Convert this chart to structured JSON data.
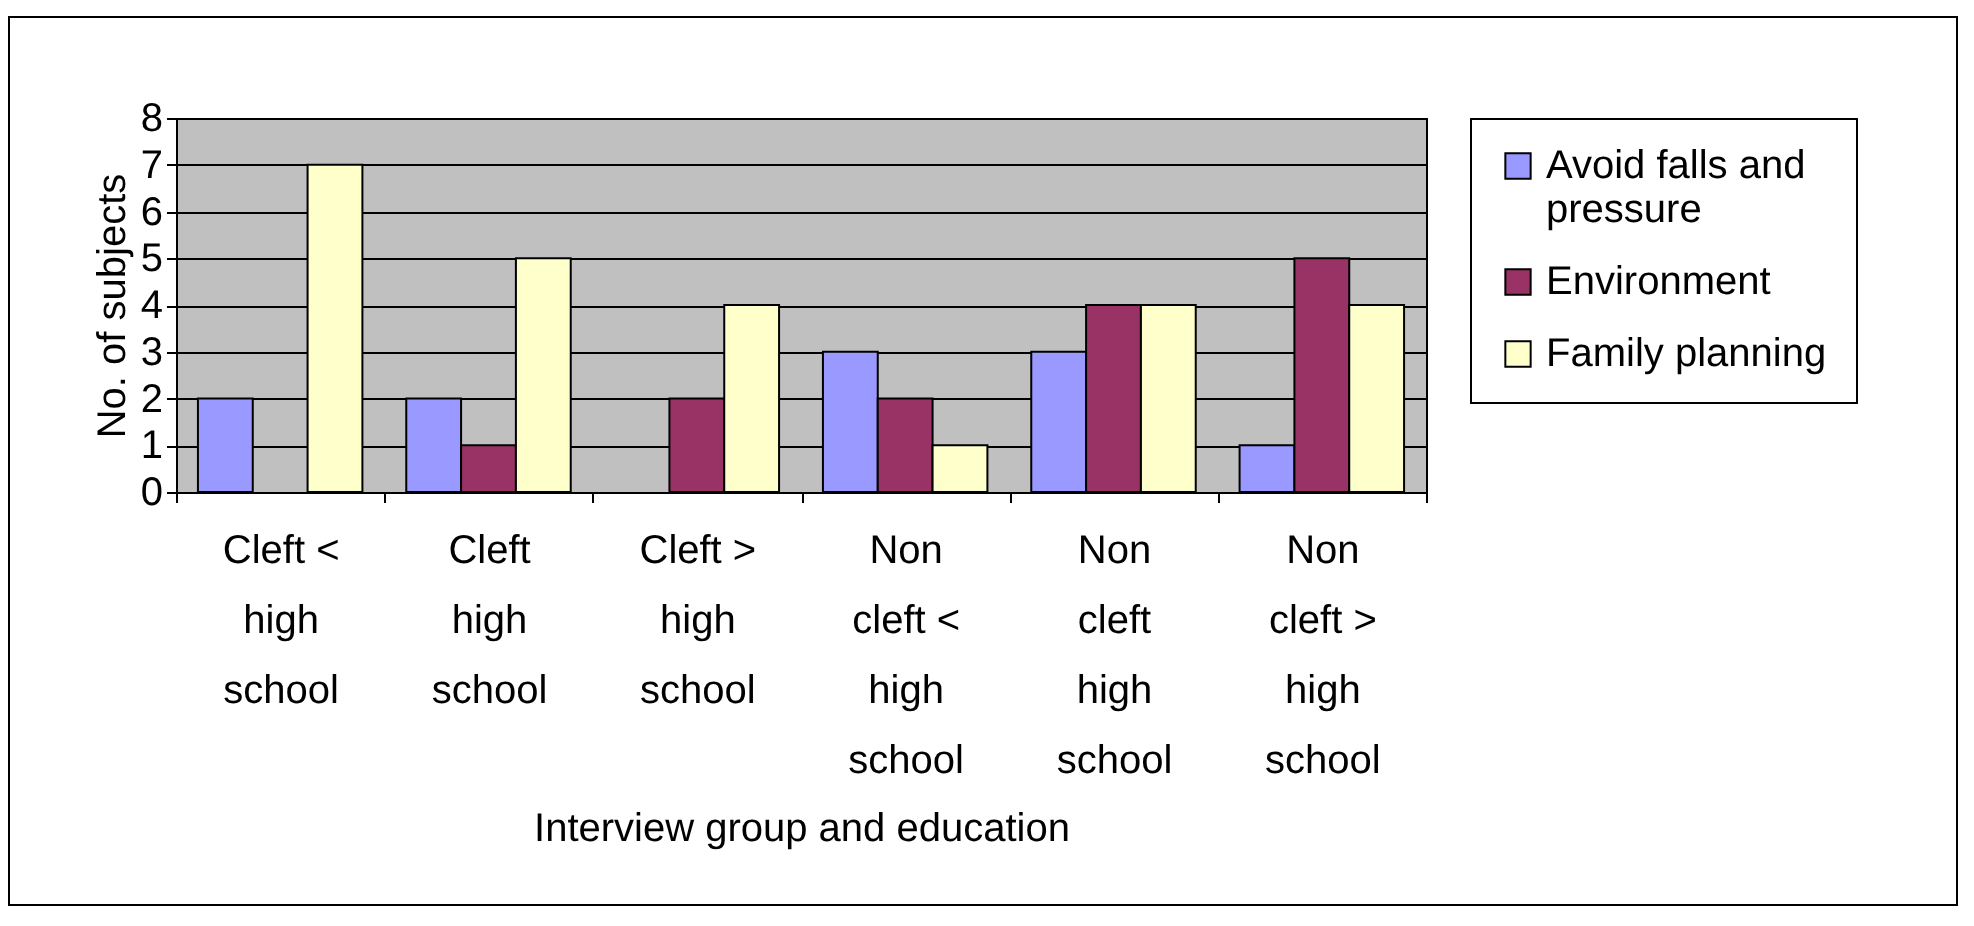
{
  "chart_data": {
    "type": "bar",
    "xlabel": "Interview group and education",
    "ylabel": "No. of subjects",
    "categories": [
      "Cleft < high school",
      "Cleft high school",
      "Cleft > high school",
      "Non cleft < high school",
      "Non cleft high school",
      "Non cleft > high school"
    ],
    "series": [
      {
        "name": "Avoid falls and pressure",
        "color": "#9999ff",
        "values": [
          2,
          2,
          null,
          3,
          3,
          1
        ]
      },
      {
        "name": "Environment",
        "color": "#993366",
        "values": [
          null,
          1,
          2,
          2,
          4,
          5
        ]
      },
      {
        "name": "Family planning",
        "color": "#ffffcc",
        "values": [
          7,
          5,
          4,
          1,
          4,
          4
        ]
      }
    ],
    "ylim": [
      0,
      8
    ],
    "yticks": [
      0,
      1,
      2,
      3,
      4,
      5,
      6,
      7,
      8
    ],
    "grid": "y",
    "legend": "right"
  }
}
